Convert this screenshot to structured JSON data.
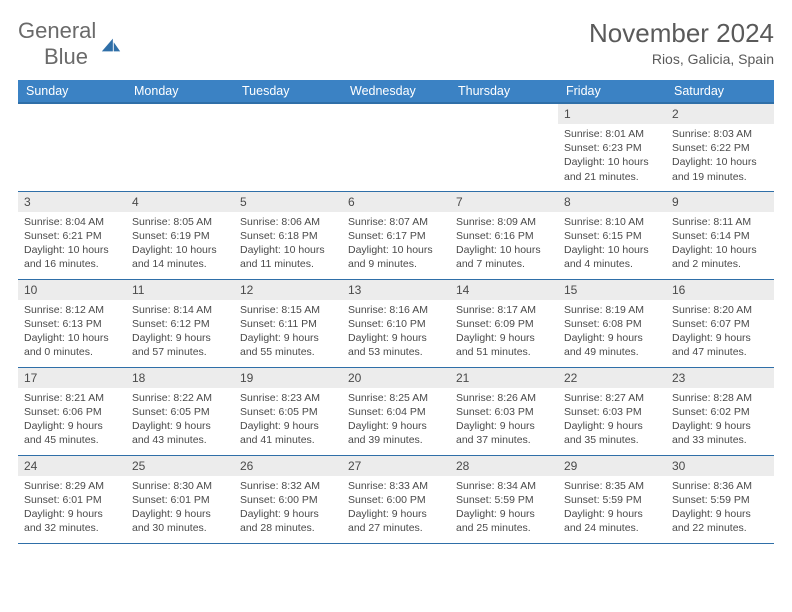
{
  "brand": {
    "word1": "General",
    "word2": "Blue"
  },
  "title": "November 2024",
  "location": "Rios, Galicia, Spain",
  "header_bg": "#3b82c4",
  "accent": "#2f6fa8",
  "day_bg": "#ececec",
  "text_color": "#4a4a4a",
  "columns": [
    "Sunday",
    "Monday",
    "Tuesday",
    "Wednesday",
    "Thursday",
    "Friday",
    "Saturday"
  ],
  "weeks": [
    [
      null,
      null,
      null,
      null,
      null,
      {
        "n": "1",
        "sunrise": "8:01 AM",
        "sunset": "6:23 PM",
        "daylight": "10 hours and 21 minutes."
      },
      {
        "n": "2",
        "sunrise": "8:03 AM",
        "sunset": "6:22 PM",
        "daylight": "10 hours and 19 minutes."
      }
    ],
    [
      {
        "n": "3",
        "sunrise": "8:04 AM",
        "sunset": "6:21 PM",
        "daylight": "10 hours and 16 minutes."
      },
      {
        "n": "4",
        "sunrise": "8:05 AM",
        "sunset": "6:19 PM",
        "daylight": "10 hours and 14 minutes."
      },
      {
        "n": "5",
        "sunrise": "8:06 AM",
        "sunset": "6:18 PM",
        "daylight": "10 hours and 11 minutes."
      },
      {
        "n": "6",
        "sunrise": "8:07 AM",
        "sunset": "6:17 PM",
        "daylight": "10 hours and 9 minutes."
      },
      {
        "n": "7",
        "sunrise": "8:09 AM",
        "sunset": "6:16 PM",
        "daylight": "10 hours and 7 minutes."
      },
      {
        "n": "8",
        "sunrise": "8:10 AM",
        "sunset": "6:15 PM",
        "daylight": "10 hours and 4 minutes."
      },
      {
        "n": "9",
        "sunrise": "8:11 AM",
        "sunset": "6:14 PM",
        "daylight": "10 hours and 2 minutes."
      }
    ],
    [
      {
        "n": "10",
        "sunrise": "8:12 AM",
        "sunset": "6:13 PM",
        "daylight": "10 hours and 0 minutes."
      },
      {
        "n": "11",
        "sunrise": "8:14 AM",
        "sunset": "6:12 PM",
        "daylight": "9 hours and 57 minutes."
      },
      {
        "n": "12",
        "sunrise": "8:15 AM",
        "sunset": "6:11 PM",
        "daylight": "9 hours and 55 minutes."
      },
      {
        "n": "13",
        "sunrise": "8:16 AM",
        "sunset": "6:10 PM",
        "daylight": "9 hours and 53 minutes."
      },
      {
        "n": "14",
        "sunrise": "8:17 AM",
        "sunset": "6:09 PM",
        "daylight": "9 hours and 51 minutes."
      },
      {
        "n": "15",
        "sunrise": "8:19 AM",
        "sunset": "6:08 PM",
        "daylight": "9 hours and 49 minutes."
      },
      {
        "n": "16",
        "sunrise": "8:20 AM",
        "sunset": "6:07 PM",
        "daylight": "9 hours and 47 minutes."
      }
    ],
    [
      {
        "n": "17",
        "sunrise": "8:21 AM",
        "sunset": "6:06 PM",
        "daylight": "9 hours and 45 minutes."
      },
      {
        "n": "18",
        "sunrise": "8:22 AM",
        "sunset": "6:05 PM",
        "daylight": "9 hours and 43 minutes."
      },
      {
        "n": "19",
        "sunrise": "8:23 AM",
        "sunset": "6:05 PM",
        "daylight": "9 hours and 41 minutes."
      },
      {
        "n": "20",
        "sunrise": "8:25 AM",
        "sunset": "6:04 PM",
        "daylight": "9 hours and 39 minutes."
      },
      {
        "n": "21",
        "sunrise": "8:26 AM",
        "sunset": "6:03 PM",
        "daylight": "9 hours and 37 minutes."
      },
      {
        "n": "22",
        "sunrise": "8:27 AM",
        "sunset": "6:03 PM",
        "daylight": "9 hours and 35 minutes."
      },
      {
        "n": "23",
        "sunrise": "8:28 AM",
        "sunset": "6:02 PM",
        "daylight": "9 hours and 33 minutes."
      }
    ],
    [
      {
        "n": "24",
        "sunrise": "8:29 AM",
        "sunset": "6:01 PM",
        "daylight": "9 hours and 32 minutes."
      },
      {
        "n": "25",
        "sunrise": "8:30 AM",
        "sunset": "6:01 PM",
        "daylight": "9 hours and 30 minutes."
      },
      {
        "n": "26",
        "sunrise": "8:32 AM",
        "sunset": "6:00 PM",
        "daylight": "9 hours and 28 minutes."
      },
      {
        "n": "27",
        "sunrise": "8:33 AM",
        "sunset": "6:00 PM",
        "daylight": "9 hours and 27 minutes."
      },
      {
        "n": "28",
        "sunrise": "8:34 AM",
        "sunset": "5:59 PM",
        "daylight": "9 hours and 25 minutes."
      },
      {
        "n": "29",
        "sunrise": "8:35 AM",
        "sunset": "5:59 PM",
        "daylight": "9 hours and 24 minutes."
      },
      {
        "n": "30",
        "sunrise": "8:36 AM",
        "sunset": "5:59 PM",
        "daylight": "9 hours and 22 minutes."
      }
    ]
  ],
  "labels": {
    "sunrise": "Sunrise:",
    "sunset": "Sunset:",
    "daylight": "Daylight:"
  }
}
